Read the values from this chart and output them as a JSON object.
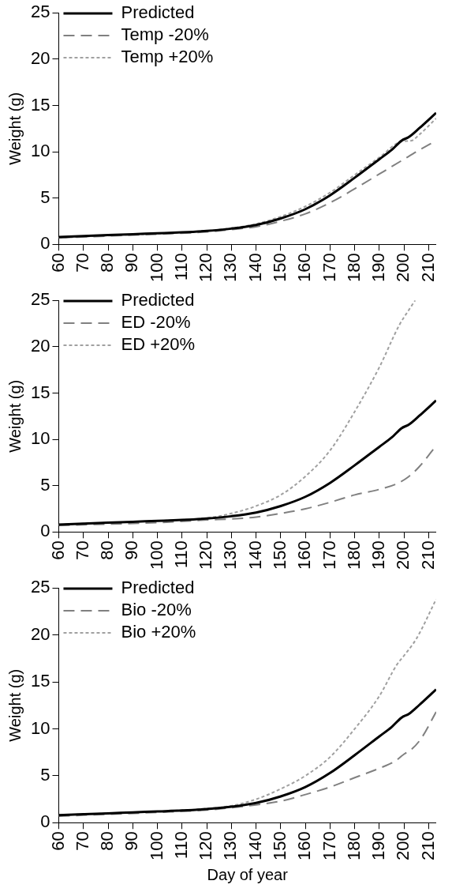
{
  "chart_data": [
    {
      "type": "line",
      "ylabel": "Weight (g)",
      "xlim": [
        60,
        213
      ],
      "xticks": [
        60,
        70,
        80,
        90,
        100,
        110,
        120,
        130,
        140,
        150,
        160,
        170,
        180,
        190,
        200,
        210
      ],
      "ylim": [
        0,
        25
      ],
      "yticks": [
        0,
        5,
        10,
        15,
        20,
        25
      ],
      "grid": false,
      "legend": "top left",
      "marker": "none",
      "series": [
        {
          "name": "Predicted",
          "color": "#000000",
          "line_style": "solid",
          "x": [
            60,
            70,
            80,
            90,
            100,
            110,
            120,
            130,
            140,
            150,
            160,
            170,
            180,
            190,
            195,
            199,
            202,
            206,
            213
          ],
          "values": [
            0.8,
            0.9,
            1.0,
            1.1,
            1.2,
            1.3,
            1.45,
            1.7,
            2.1,
            2.8,
            3.8,
            5.3,
            7.2,
            9.2,
            10.2,
            11.2,
            11.6,
            12.5,
            14.2
          ]
        },
        {
          "name": "Temp -20%",
          "color": "#808080",
          "line_style": "dashed",
          "x": [
            60,
            80,
            100,
            120,
            130,
            140,
            150,
            160,
            170,
            180,
            190,
            200,
            205,
            213
          ],
          "values": [
            0.7,
            0.9,
            1.1,
            1.35,
            1.6,
            1.9,
            2.5,
            3.3,
            4.5,
            6.0,
            7.6,
            9.2,
            10.0,
            11.2
          ]
        },
        {
          "name": "Temp +20%",
          "color": "#a0a0a0",
          "line_style": "dotted",
          "x": [
            60,
            80,
            100,
            120,
            130,
            140,
            150,
            160,
            170,
            180,
            190,
            199,
            203,
            206,
            213
          ],
          "values": [
            0.7,
            0.95,
            1.15,
            1.45,
            1.75,
            2.2,
            3.0,
            4.1,
            5.6,
            7.5,
            9.4,
            11.1,
            11.2,
            11.8,
            13.6
          ]
        }
      ]
    },
    {
      "type": "line",
      "ylabel": "Weight (g)",
      "xlim": [
        60,
        213
      ],
      "xticks": [
        60,
        70,
        80,
        90,
        100,
        110,
        120,
        130,
        140,
        150,
        160,
        170,
        180,
        190,
        200,
        210
      ],
      "ylim": [
        0,
        25
      ],
      "yticks": [
        0,
        5,
        10,
        15,
        20,
        25
      ],
      "grid": false,
      "legend": "top left",
      "marker": "none",
      "series": [
        {
          "name": "Predicted",
          "color": "#000000",
          "line_style": "solid",
          "x": [
            60,
            70,
            80,
            90,
            100,
            110,
            120,
            130,
            140,
            150,
            160,
            170,
            180,
            190,
            195,
            199,
            202,
            206,
            213
          ],
          "values": [
            0.8,
            0.9,
            1.0,
            1.1,
            1.2,
            1.3,
            1.45,
            1.7,
            2.1,
            2.8,
            3.8,
            5.3,
            7.2,
            9.2,
            10.2,
            11.2,
            11.6,
            12.5,
            14.2
          ]
        },
        {
          "name": "ED -20%",
          "color": "#808080",
          "line_style": "dashed",
          "x": [
            60,
            80,
            100,
            120,
            130,
            140,
            150,
            160,
            170,
            180,
            190,
            197,
            202,
            206,
            213
          ],
          "values": [
            0.7,
            0.85,
            1.0,
            1.3,
            1.4,
            1.6,
            2.0,
            2.5,
            3.2,
            4.0,
            4.6,
            5.2,
            6.0,
            7.0,
            9.3
          ]
        },
        {
          "name": "ED +20%",
          "color": "#a0a0a0",
          "line_style": "dotted",
          "x": [
            60,
            80,
            100,
            120,
            130,
            140,
            150,
            160,
            170,
            180,
            190,
            198,
            202,
            204.5
          ],
          "values": [
            0.8,
            1.0,
            1.2,
            1.5,
            2.0,
            2.8,
            4.0,
            6.0,
            8.8,
            13.0,
            17.8,
            22.3,
            24.0,
            25
          ]
        }
      ]
    },
    {
      "type": "line",
      "xlabel": "Day of year",
      "ylabel": "Weight (g)",
      "xlim": [
        60,
        213
      ],
      "xticks": [
        60,
        70,
        80,
        90,
        100,
        110,
        120,
        130,
        140,
        150,
        160,
        170,
        180,
        190,
        200,
        210
      ],
      "ylim": [
        0,
        25
      ],
      "yticks": [
        0,
        5,
        10,
        15,
        20,
        25
      ],
      "grid": false,
      "legend": "top left",
      "marker": "none",
      "series": [
        {
          "name": "Predicted",
          "color": "#000000",
          "line_style": "solid",
          "x": [
            60,
            70,
            80,
            90,
            100,
            110,
            120,
            130,
            140,
            150,
            160,
            170,
            180,
            190,
            195,
            199,
            202,
            206,
            213
          ],
          "values": [
            0.8,
            0.9,
            1.0,
            1.1,
            1.2,
            1.3,
            1.45,
            1.7,
            2.1,
            2.8,
            3.8,
            5.3,
            7.2,
            9.2,
            10.2,
            11.2,
            11.6,
            12.5,
            14.2
          ]
        },
        {
          "name": "Bio -20%",
          "color": "#808080",
          "line_style": "dashed",
          "x": [
            60,
            80,
            100,
            120,
            130,
            140,
            150,
            160,
            170,
            180,
            190,
            196,
            200,
            203,
            207,
            213
          ],
          "values": [
            0.7,
            0.9,
            1.1,
            1.35,
            1.6,
            1.9,
            2.3,
            3.0,
            3.8,
            4.8,
            5.8,
            6.5,
            7.3,
            7.8,
            9.0,
            11.8
          ]
        },
        {
          "name": "Bio +20%",
          "color": "#a0a0a0",
          "line_style": "dotted",
          "x": [
            60,
            80,
            100,
            120,
            130,
            140,
            150,
            160,
            170,
            180,
            190,
            197,
            200,
            205,
            213
          ],
          "values": [
            0.8,
            1.0,
            1.2,
            1.5,
            1.8,
            2.5,
            3.6,
            5.0,
            7.0,
            10.0,
            13.5,
            16.8,
            17.8,
            19.6,
            23.8
          ]
        }
      ]
    }
  ]
}
